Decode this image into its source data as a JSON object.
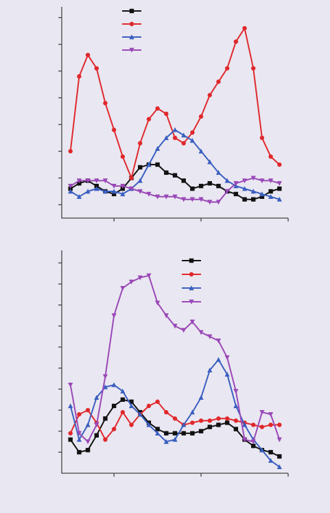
{
  "chart_data": [
    {
      "type": "line",
      "x": [
        -0.5,
        -0.4,
        -0.3,
        -0.2,
        -0.1,
        0,
        0.1,
        0.2,
        0.3,
        0.4,
        0.5,
        0.6,
        0.7,
        0.8,
        0.9,
        1,
        1.1,
        1.2,
        1.3,
        1.4,
        1.5,
        1.6,
        1.7,
        1.8,
        1.9
      ],
      "xlim": [
        -0.6,
        2
      ],
      "xticks": [
        0,
        1,
        2
      ],
      "ylim": [
        -0.5,
        7.4
      ],
      "yticks": [
        0,
        1,
        2,
        3,
        4,
        5,
        6,
        7
      ],
      "series": [
        {
          "color": "#111111",
          "marker": "square",
          "values": [
            0.6,
            0.8,
            0.9,
            0.7,
            0.5,
            0.4,
            0.6,
            1.0,
            1.4,
            1.5,
            1.5,
            1.2,
            1.1,
            0.9,
            0.6,
            0.7,
            0.8,
            0.7,
            0.5,
            0.4,
            0.2,
            0.2,
            0.3,
            0.5,
            0.6
          ]
        },
        {
          "color": "#e0282c",
          "marker": "circle",
          "values": [
            2.0,
            4.8,
            5.6,
            5.1,
            3.8,
            2.8,
            1.8,
            1.0,
            2.3,
            3.2,
            3.6,
            3.4,
            2.5,
            2.3,
            2.7,
            3.3,
            4.1,
            4.6,
            5.1,
            6.1,
            6.6,
            5.1,
            2.5,
            1.8,
            1.5
          ]
        },
        {
          "color": "#3a5fc0",
          "marker": "triangle",
          "values": [
            0.5,
            0.3,
            0.5,
            0.6,
            0.5,
            0.5,
            0.4,
            0.6,
            0.9,
            1.5,
            2.1,
            2.5,
            2.8,
            2.6,
            2.4,
            2.0,
            1.6,
            1.2,
            0.9,
            0.7,
            0.6,
            0.5,
            0.4,
            0.3,
            0.2
          ]
        },
        {
          "color": "#9a48b8",
          "marker": "down-triangle",
          "values": [
            0.7,
            0.9,
            0.9,
            0.9,
            0.9,
            0.7,
            0.7,
            0.6,
            0.5,
            0.4,
            0.3,
            0.3,
            0.3,
            0.2,
            0.2,
            0.2,
            0.1,
            0.1,
            0.5,
            0.8,
            0.9,
            1.0,
            0.9,
            0.9,
            0.8
          ]
        }
      ]
    },
    {
      "type": "line",
      "x": [
        -0.5,
        -0.4,
        -0.3,
        -0.2,
        -0.1,
        0,
        0.1,
        0.2,
        0.3,
        0.4,
        0.5,
        0.6,
        0.7,
        0.8,
        0.9,
        1,
        1.1,
        1.2,
        1.3,
        1.4,
        1.5,
        1.6,
        1.7,
        1.8,
        1.9
      ],
      "xlim": [
        -0.6,
        2
      ],
      "xticks": [
        0,
        1,
        2
      ],
      "ylim": [
        -1,
        9.6
      ],
      "yticks": [
        0,
        1,
        2,
        3,
        4,
        5,
        6,
        7,
        8,
        9
      ],
      "series": [
        {
          "color": "#111111",
          "marker": "square",
          "values": [
            0.6,
            0,
            0.1,
            0.8,
            1.6,
            2.2,
            2.5,
            2.4,
            1.9,
            1.4,
            1.1,
            0.9,
            0.9,
            0.9,
            0.9,
            1.0,
            1.2,
            1.3,
            1.4,
            1.1,
            0.6,
            0.3,
            0.1,
            0,
            -0.2
          ]
        },
        {
          "color": "#e0282c",
          "marker": "circle",
          "values": [
            0.9,
            1.8,
            2.0,
            1.4,
            0.6,
            1.1,
            1.9,
            1.3,
            1.8,
            2.2,
            2.4,
            1.9,
            1.6,
            1.3,
            1.4,
            1.5,
            1.5,
            1.6,
            1.6,
            1.5,
            1.4,
            1.3,
            1.2,
            1.3,
            1.3
          ]
        },
        {
          "color": "#3a5fc0",
          "marker": "triangle",
          "values": [
            2.2,
            0.6,
            1.3,
            2.6,
            3.1,
            3.2,
            2.9,
            2.2,
            1.8,
            1.3,
            0.9,
            0.5,
            0.6,
            1.3,
            1.9,
            2.6,
            3.9,
            4.4,
            3.7,
            2.2,
            1.3,
            0.6,
            0.1,
            -0.4,
            -0.7
          ]
        },
        {
          "color": "#9a48b8",
          "marker": "down-triangle",
          "values": [
            3.2,
            0.9,
            0.5,
            1.3,
            3.6,
            6.5,
            7.8,
            8.1,
            8.3,
            8.4,
            7.1,
            6.5,
            6.0,
            5.8,
            6.2,
            5.7,
            5.5,
            5.3,
            4.5,
            2.9,
            0.6,
            0.5,
            1.9,
            1.8,
            0.6
          ]
        }
      ]
    }
  ]
}
